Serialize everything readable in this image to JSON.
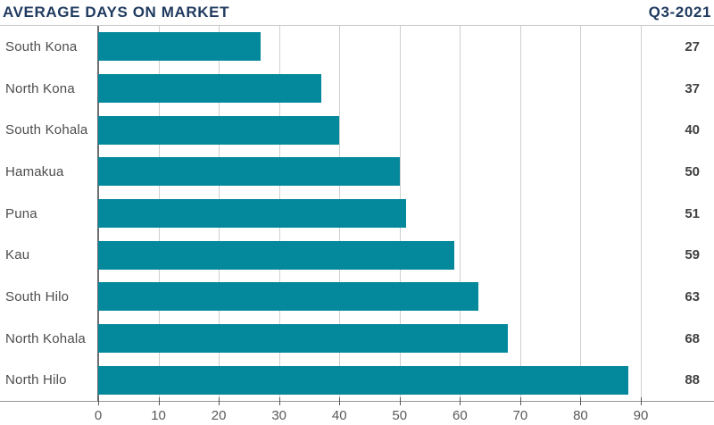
{
  "header": {
    "title": "AVERAGE DAYS ON MARKET",
    "period": "Q3-2021"
  },
  "colors": {
    "bar": "#04889b",
    "title": "#1f3a5f",
    "category_label": "#4d4d4f",
    "value_label": "#414042",
    "gridline": "#cdcfd0",
    "zero_line": "#6d6e71",
    "axis_line": "#939598",
    "tick_label": "#58595b",
    "header_rule": "#c8cacb"
  },
  "chart_data": {
    "type": "bar",
    "orientation": "horizontal",
    "title": "AVERAGE DAYS ON MARKET",
    "subtitle": "Q3-2021",
    "categories": [
      "South Kona",
      "North Kona",
      "South Kohala",
      "Hamakua",
      "Puna",
      "Kau",
      "South Hilo",
      "North Kohala",
      "North Hilo"
    ],
    "values": [
      27,
      37,
      40,
      50,
      51,
      59,
      63,
      68,
      88
    ],
    "xlabel": "",
    "ylabel": "",
    "xlim": [
      0,
      90
    ],
    "xticks": [
      0,
      10,
      20,
      30,
      40,
      50,
      60,
      70,
      80,
      90
    ],
    "grid": true,
    "value_labels_position": "right",
    "legend": false
  }
}
